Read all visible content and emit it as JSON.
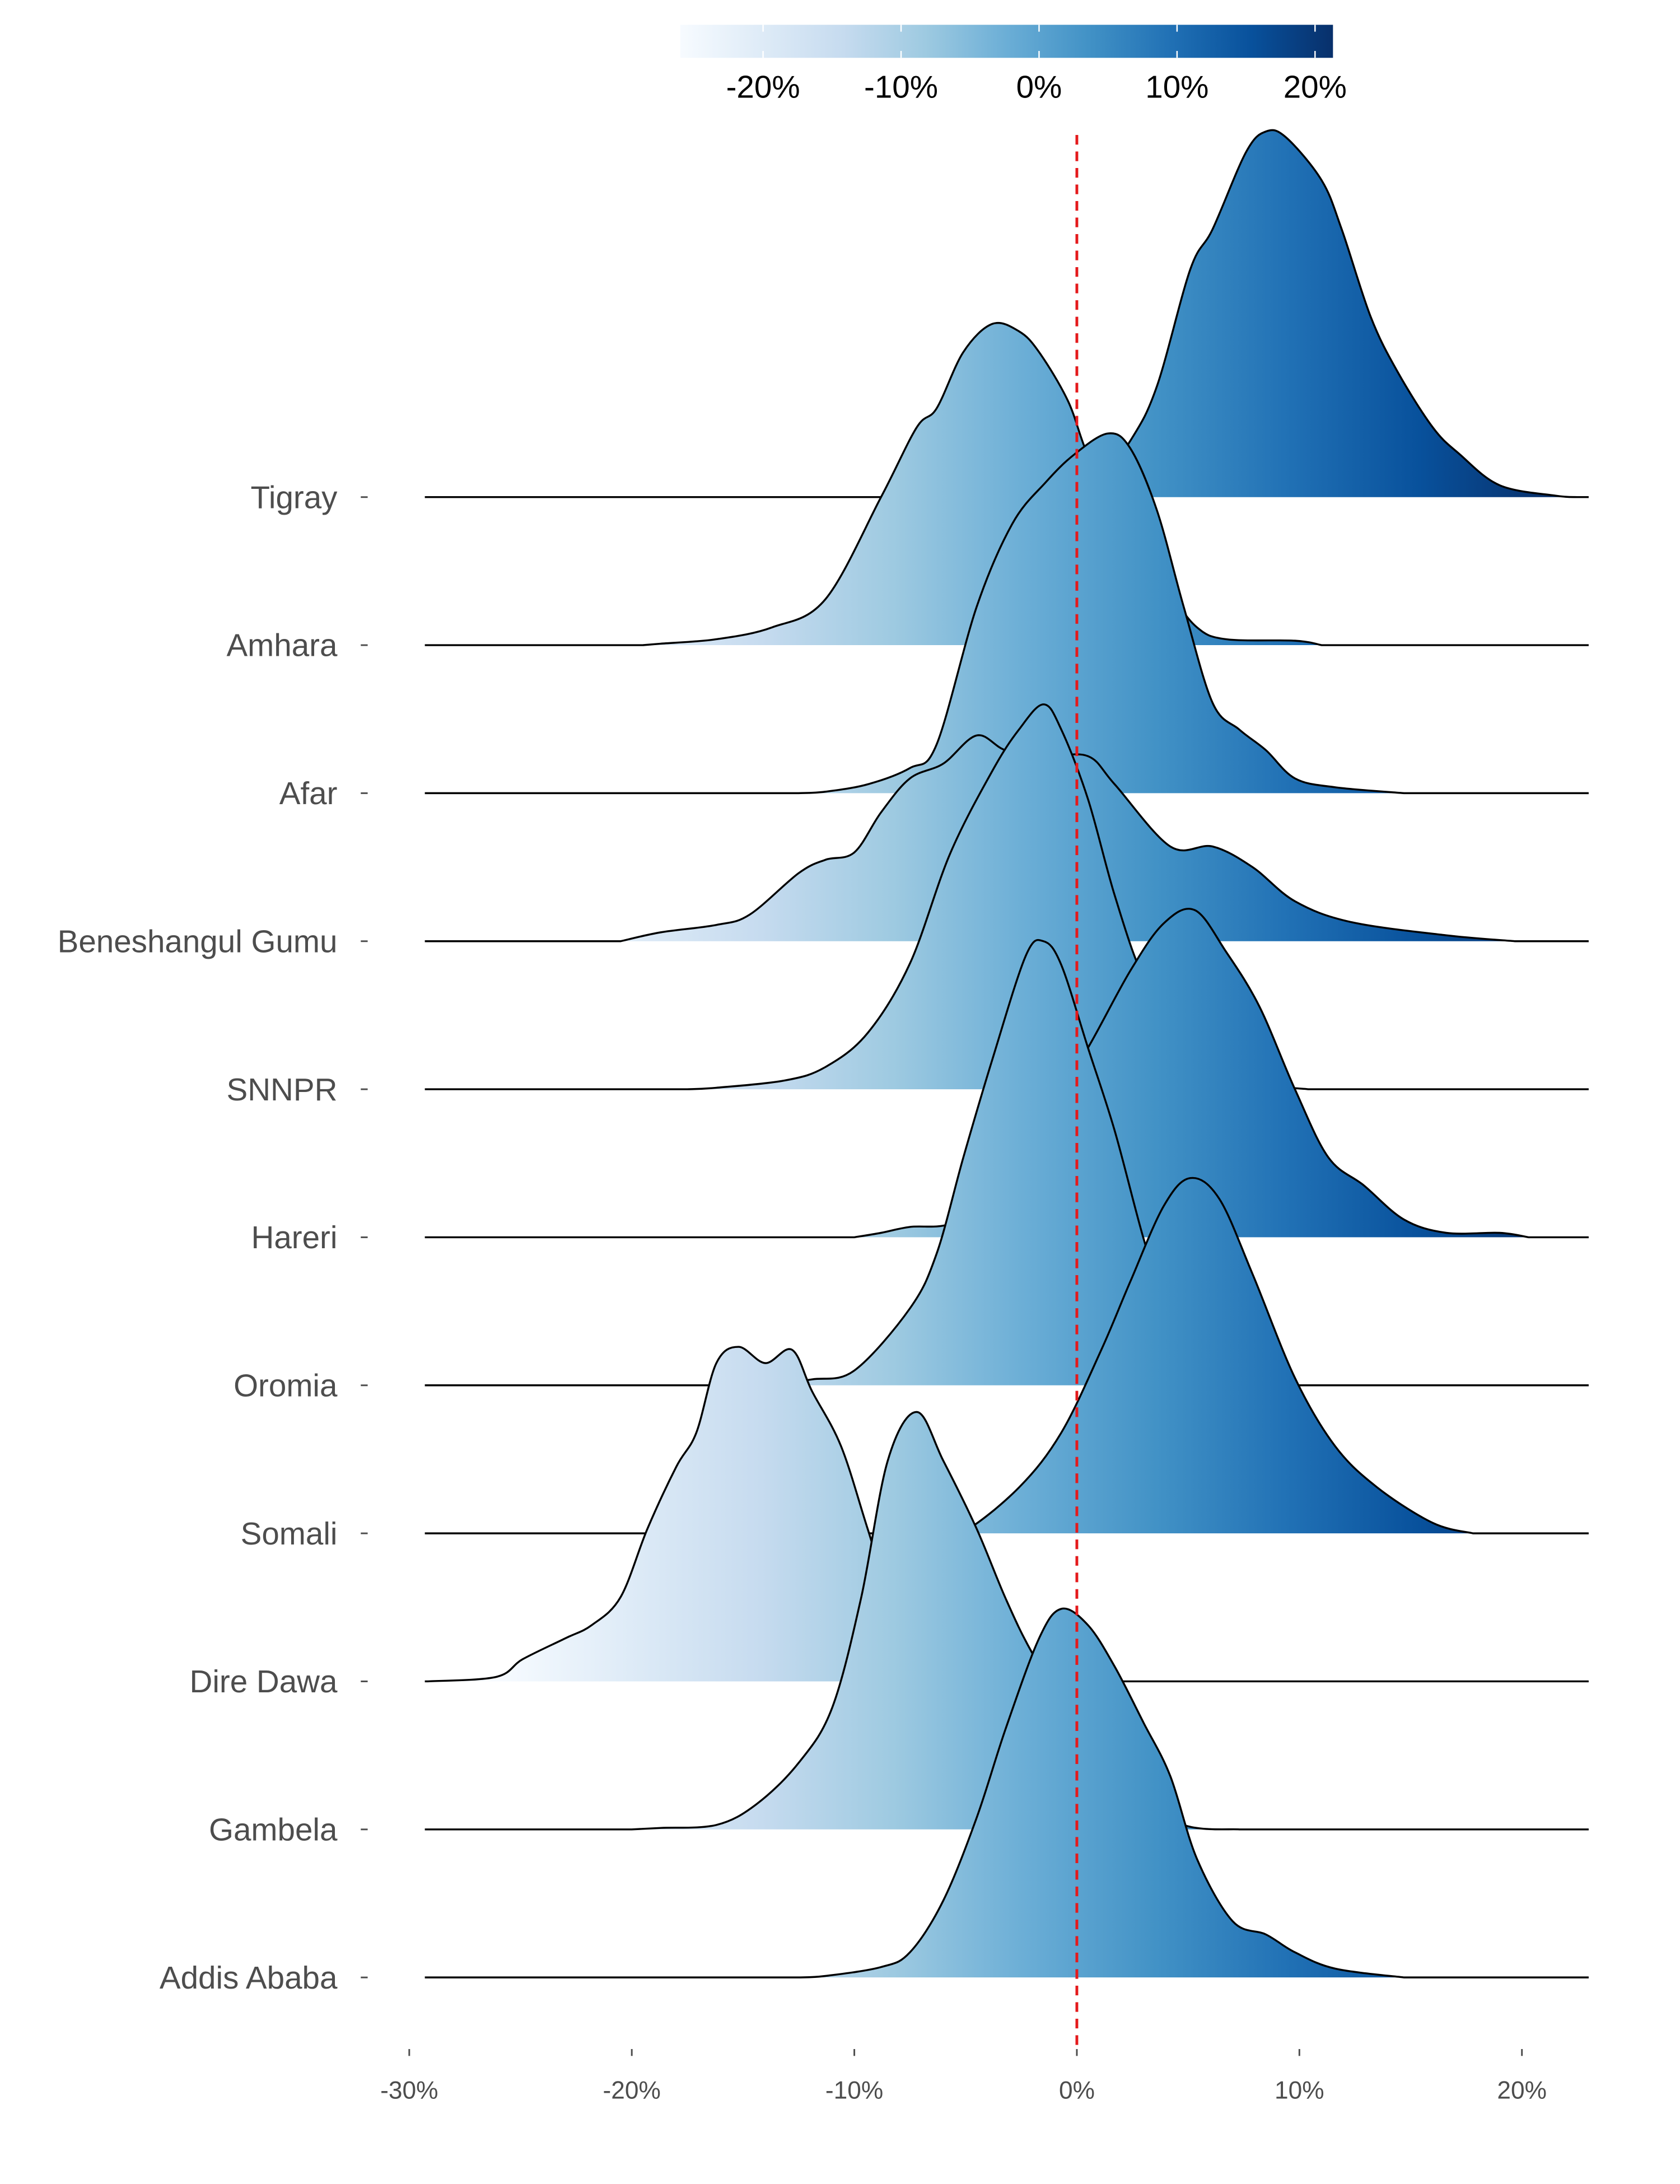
{
  "chart_data": {
    "type": "ridgeline",
    "title": "",
    "xlabel": "",
    "ylabel": "",
    "xlim": [
      -30,
      23
    ],
    "x_ticks": [
      "-30%",
      "-20%",
      "-10%",
      "0%",
      "10%",
      "20%"
    ],
    "x_tick_values": [
      -30,
      -20,
      -10,
      0,
      10,
      20
    ],
    "reference_line": {
      "x": 0,
      "style": "dashed",
      "color": "#e41a1c"
    },
    "colorbar": {
      "range": [
        -26,
        21.3
      ],
      "ticks": [
        "-20%",
        "-10%",
        "0%",
        "10%",
        "20%"
      ],
      "tick_values": [
        -20,
        -10,
        0,
        10,
        20
      ],
      "palette": [
        "#f7fbff",
        "#deebf7",
        "#c6dbef",
        "#9ecae1",
        "#6baed6",
        "#4292c6",
        "#2171b5",
        "#08519c",
        "#08306b"
      ],
      "placement": "top"
    },
    "series": [
      {
        "name": "Tigray",
        "points": [
          [
            0.5,
            0
          ],
          [
            2.4,
            0.38
          ],
          [
            3.6,
            0.75
          ],
          [
            5.1,
            1.54
          ],
          [
            6.1,
            1.81
          ],
          [
            7.6,
            2.33
          ],
          [
            8.5,
            2.47
          ],
          [
            9.4,
            2.43
          ],
          [
            11,
            2.14
          ],
          [
            11.9,
            1.81
          ],
          [
            13.2,
            1.22
          ],
          [
            14.4,
            0.85
          ],
          [
            16,
            0.47
          ],
          [
            17.2,
            0.29
          ],
          [
            19,
            0.08
          ],
          [
            21.5,
            0.01
          ],
          [
            22.5,
            0
          ]
        ]
      },
      {
        "name": "Amhara",
        "points": [
          [
            -19.5,
            0
          ],
          [
            -18.7,
            0.01
          ],
          [
            -16.2,
            0.04
          ],
          [
            -13.7,
            0.12
          ],
          [
            -11.3,
            0.31
          ],
          [
            -8.8,
            1.0
          ],
          [
            -7.2,
            1.47
          ],
          [
            -6.3,
            1.6
          ],
          [
            -5.1,
            1.98
          ],
          [
            -3.8,
            2.17
          ],
          [
            -2.6,
            2.12
          ],
          [
            -1.7,
            1.98
          ],
          [
            -0.4,
            1.65
          ],
          [
            0.5,
            1.28
          ],
          [
            2,
            0.82
          ],
          [
            4.2,
            0.35
          ],
          [
            5.4,
            0.12
          ],
          [
            6.7,
            0.04
          ],
          [
            9.8,
            0.03
          ],
          [
            11,
            0
          ]
        ]
      },
      {
        "name": "Afar",
        "points": [
          [
            -12.5,
            0
          ],
          [
            -11.3,
            0.01
          ],
          [
            -9.4,
            0.06
          ],
          [
            -7.5,
            0.17
          ],
          [
            -6.3,
            0.33
          ],
          [
            -4.5,
            1.26
          ],
          [
            -2.9,
            1.82
          ],
          [
            -1.4,
            2.1
          ],
          [
            -0.1,
            2.29
          ],
          [
            1.4,
            2.43
          ],
          [
            2.4,
            2.33
          ],
          [
            3.6,
            1.91
          ],
          [
            4.8,
            1.26
          ],
          [
            6.1,
            0.61
          ],
          [
            7.3,
            0.43
          ],
          [
            8.5,
            0.29
          ],
          [
            9.8,
            0.1
          ],
          [
            11.6,
            0.04
          ],
          [
            14.7,
            0
          ]
        ]
      },
      {
        "name": "Beneshangul Gumu",
        "points": [
          [
            -20.5,
            0
          ],
          [
            -18.7,
            0.06
          ],
          [
            -16.2,
            0.11
          ],
          [
            -14.7,
            0.18
          ],
          [
            -12.5,
            0.46
          ],
          [
            -11.3,
            0.55
          ],
          [
            -10,
            0.6
          ],
          [
            -8.8,
            0.87
          ],
          [
            -7.5,
            1.1
          ],
          [
            -6,
            1.2
          ],
          [
            -4.5,
            1.39
          ],
          [
            -3.2,
            1.29
          ],
          [
            -1.4,
            1.25
          ],
          [
            0.5,
            1.25
          ],
          [
            1.7,
            1.06
          ],
          [
            4.2,
            0.64
          ],
          [
            6.1,
            0.64
          ],
          [
            7.9,
            0.5
          ],
          [
            9.8,
            0.27
          ],
          [
            12.3,
            0.13
          ],
          [
            16.6,
            0.04
          ],
          [
            19.7,
            0
          ]
        ]
      },
      {
        "name": "SNNPR",
        "points": [
          [
            -17.5,
            0
          ],
          [
            -16.2,
            0.01
          ],
          [
            -13.1,
            0.06
          ],
          [
            -11.3,
            0.15
          ],
          [
            -9.4,
            0.38
          ],
          [
            -7.5,
            0.85
          ],
          [
            -5.7,
            1.59
          ],
          [
            -3.8,
            2.15
          ],
          [
            -2.6,
            2.43
          ],
          [
            -1.5,
            2.6
          ],
          [
            -0.7,
            2.43
          ],
          [
            0.5,
            1.96
          ],
          [
            1.7,
            1.31
          ],
          [
            3,
            0.75
          ],
          [
            4.8,
            0.29
          ],
          [
            7.3,
            0.06
          ],
          [
            10.4,
            0
          ]
        ]
      },
      {
        "name": "Hareri",
        "points": [
          [
            -10,
            0
          ],
          [
            -8.8,
            0.03
          ],
          [
            -7.5,
            0.07
          ],
          [
            -5.7,
            0.09
          ],
          [
            -3.8,
            0.26
          ],
          [
            -1.4,
            0.82
          ],
          [
            0.5,
            1.28
          ],
          [
            2.4,
            1.8
          ],
          [
            3.9,
            2.12
          ],
          [
            5.3,
            2.21
          ],
          [
            6.7,
            1.93
          ],
          [
            8.2,
            1.56
          ],
          [
            9.8,
            1.0
          ],
          [
            11.3,
            0.54
          ],
          [
            12.9,
            0.35
          ],
          [
            14.7,
            0.12
          ],
          [
            16.6,
            0.03
          ],
          [
            19,
            0.03
          ],
          [
            20.3,
            0
          ]
        ]
      },
      {
        "name": "Oromia",
        "points": [
          [
            -15,
            0
          ],
          [
            -13.7,
            0.01
          ],
          [
            -11.9,
            0.04
          ],
          [
            -10,
            0.1
          ],
          [
            -7.5,
            0.52
          ],
          [
            -6.3,
            0.89
          ],
          [
            -5.1,
            1.54
          ],
          [
            -3.8,
            2.2
          ],
          [
            -2.3,
            2.9
          ],
          [
            -1.5,
            3.0
          ],
          [
            -0.7,
            2.84
          ],
          [
            0.5,
            2.28
          ],
          [
            1.7,
            1.72
          ],
          [
            3,
            0.99
          ],
          [
            4.2,
            0.43
          ],
          [
            5.4,
            0.15
          ],
          [
            7.3,
            0.03
          ],
          [
            9.8,
            0
          ]
        ]
      },
      {
        "name": "Somali",
        "points": [
          [
            -6.5,
            0
          ],
          [
            -5.1,
            0.01
          ],
          [
            -2.6,
            0.31
          ],
          [
            -0.7,
            0.68
          ],
          [
            1.1,
            1.24
          ],
          [
            2.4,
            1.7
          ],
          [
            3.9,
            2.21
          ],
          [
            5.1,
            2.4
          ],
          [
            6.4,
            2.26
          ],
          [
            7.9,
            1.75
          ],
          [
            9.8,
            1.05
          ],
          [
            11.6,
            0.59
          ],
          [
            13.5,
            0.31
          ],
          [
            16,
            0.07
          ],
          [
            17.8,
            0
          ]
        ]
      },
      {
        "name": "Dire Dawa",
        "points": [
          [
            -29.2,
            0
          ],
          [
            -26.1,
            0.03
          ],
          [
            -24.9,
            0.15
          ],
          [
            -23,
            0.29
          ],
          [
            -21.8,
            0.38
          ],
          [
            -20.5,
            0.57
          ],
          [
            -19.3,
            1.03
          ],
          [
            -18,
            1.45
          ],
          [
            -17.1,
            1.68
          ],
          [
            -16.2,
            2.15
          ],
          [
            -15.2,
            2.26
          ],
          [
            -14,
            2.15
          ],
          [
            -12.8,
            2.24
          ],
          [
            -11.9,
            1.96
          ],
          [
            -10.6,
            1.59
          ],
          [
            -9.4,
            1.03
          ],
          [
            -8.2,
            0.47
          ],
          [
            -6.9,
            0.2
          ],
          [
            -5.1,
            0.06
          ],
          [
            -2.6,
            0
          ]
        ]
      },
      {
        "name": "Gambela",
        "points": [
          [
            -20,
            0
          ],
          [
            -18.7,
            0.01
          ],
          [
            -16.2,
            0.03
          ],
          [
            -14.4,
            0.17
          ],
          [
            -12.5,
            0.45
          ],
          [
            -11,
            0.82
          ],
          [
            -9.7,
            1.56
          ],
          [
            -8.5,
            2.49
          ],
          [
            -7.2,
            2.82
          ],
          [
            -6,
            2.49
          ],
          [
            -4.5,
            2.03
          ],
          [
            -3.2,
            1.56
          ],
          [
            -2,
            1.19
          ],
          [
            -0.1,
            0.73
          ],
          [
            2.4,
            0.26
          ],
          [
            4.8,
            0.03
          ],
          [
            7.3,
            0
          ]
        ]
      },
      {
        "name": "Addis Ababa",
        "points": [
          [
            -12.5,
            0
          ],
          [
            -11.3,
            0.01
          ],
          [
            -8.8,
            0.07
          ],
          [
            -7.5,
            0.17
          ],
          [
            -6,
            0.52
          ],
          [
            -4.5,
            1.08
          ],
          [
            -3.2,
            1.68
          ],
          [
            -1.7,
            2.29
          ],
          [
            -0.7,
            2.49
          ],
          [
            0.5,
            2.38
          ],
          [
            1.7,
            2.1
          ],
          [
            3,
            1.72
          ],
          [
            4.2,
            1.36
          ],
          [
            5.4,
            0.8
          ],
          [
            7,
            0.38
          ],
          [
            8.5,
            0.29
          ],
          [
            9.8,
            0.17
          ],
          [
            11.6,
            0.06
          ],
          [
            14.7,
            0
          ]
        ]
      }
    ]
  }
}
